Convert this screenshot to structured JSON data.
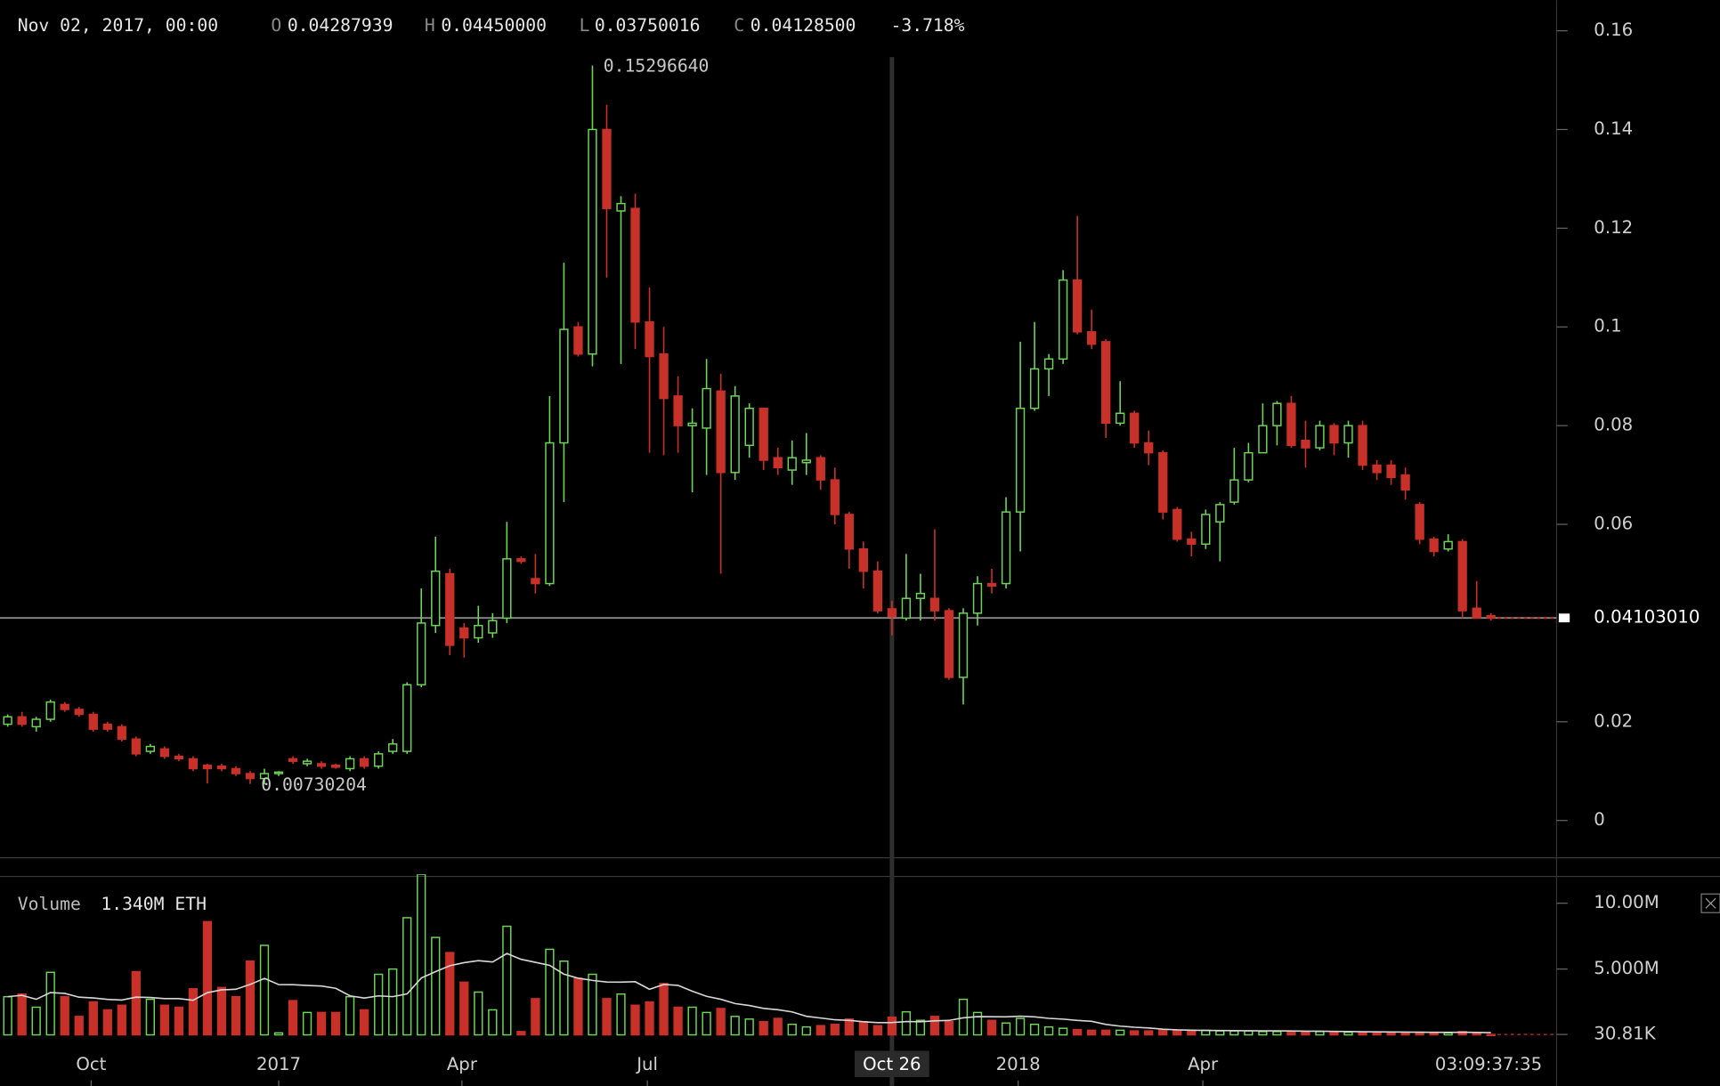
{
  "chart_data": [
    {
      "type": "candlestick",
      "header": {
        "date": "Nov 02, 2017, 00:00",
        "open_label": "O",
        "open": "0.04287939",
        "high_label": "H",
        "high": "0.04450000",
        "low_label": "L",
        "low": "0.03750016",
        "close_label": "C",
        "close": "0.04128500",
        "change": "-3.718%"
      },
      "open": [
        0.0195,
        0.021,
        0.019,
        0.0205,
        0.0235,
        0.0225,
        0.0215,
        0.0195,
        0.019,
        0.0165,
        0.014,
        0.0145,
        0.013,
        0.0125,
        0.0112,
        0.011,
        0.0105,
        0.0095,
        0.0085,
        0.0095,
        0.0125,
        0.0115,
        0.0115,
        0.0112,
        0.0105,
        0.0125,
        0.011,
        0.014,
        0.014,
        0.0275,
        0.0395,
        0.05,
        0.039,
        0.037,
        0.038,
        0.041,
        0.053,
        0.049,
        0.048,
        0.0765,
        0.1,
        0.0945,
        0.14,
        0.1235,
        0.124,
        0.101,
        0.0945,
        0.086,
        0.08,
        0.0795,
        0.087,
        0.0705,
        0.076,
        0.0835,
        0.0735,
        0.071,
        0.0725,
        0.0735,
        0.069,
        0.062,
        0.055,
        0.0505,
        0.04287939,
        0.041,
        0.045,
        0.045,
        0.0425,
        0.029,
        0.042,
        0.048,
        0.048,
        0.0625,
        0.0835,
        0.0915,
        0.0935,
        0.1095,
        0.099,
        0.097,
        0.0805,
        0.0825,
        0.0765,
        0.0745,
        0.063,
        0.057,
        0.056,
        0.0605,
        0.0645,
        0.069,
        0.0745,
        0.08,
        0.0845,
        0.077,
        0.0755,
        0.08,
        0.0765,
        0.08,
        0.072,
        0.072,
        0.07,
        0.064,
        0.057,
        0.055,
        0.0565,
        0.043,
        0.0415
      ],
      "high": [
        0.0215,
        0.022,
        0.021,
        0.0245,
        0.024,
        0.023,
        0.022,
        0.02,
        0.0195,
        0.017,
        0.0155,
        0.015,
        0.0135,
        0.013,
        0.0115,
        0.0115,
        0.011,
        0.01,
        0.0105,
        0.01,
        0.013,
        0.0125,
        0.012,
        0.0115,
        0.013,
        0.013,
        0.014,
        0.0165,
        0.028,
        0.047,
        0.0575,
        0.051,
        0.04,
        0.0435,
        0.042,
        0.0605,
        0.0535,
        0.054,
        0.086,
        0.113,
        0.101,
        0.1529664,
        0.145,
        0.1265,
        0.127,
        0.108,
        0.1,
        0.09,
        0.0835,
        0.0935,
        0.0905,
        0.088,
        0.0845,
        0.0835,
        0.0755,
        0.077,
        0.0785,
        0.074,
        0.0715,
        0.0625,
        0.0565,
        0.0525,
        0.0445,
        0.054,
        0.05,
        0.059,
        0.043,
        0.043,
        0.0495,
        0.051,
        0.0655,
        0.097,
        0.101,
        0.0945,
        0.1115,
        0.1225,
        0.1035,
        0.0975,
        0.089,
        0.083,
        0.079,
        0.075,
        0.0635,
        0.0585,
        0.063,
        0.0645,
        0.0755,
        0.0765,
        0.0845,
        0.085,
        0.086,
        0.081,
        0.081,
        0.0805,
        0.081,
        0.081,
        0.073,
        0.073,
        0.0715,
        0.0645,
        0.0575,
        0.058,
        0.057,
        0.0485,
        0.042
      ],
      "low": [
        0.019,
        0.019,
        0.018,
        0.02,
        0.022,
        0.021,
        0.018,
        0.018,
        0.016,
        0.013,
        0.0135,
        0.0125,
        0.012,
        0.01,
        0.0075,
        0.01,
        0.009,
        0.0074,
        0.00730204,
        0.009,
        0.0115,
        0.011,
        0.0105,
        0.0105,
        0.01,
        0.0105,
        0.0105,
        0.0135,
        0.0135,
        0.027,
        0.038,
        0.0335,
        0.033,
        0.036,
        0.037,
        0.04,
        0.052,
        0.046,
        0.0475,
        0.0645,
        0.094,
        0.092,
        0.11,
        0.0925,
        0.0955,
        0.0745,
        0.074,
        0.0745,
        0.0665,
        0.07,
        0.05,
        0.069,
        0.0735,
        0.071,
        0.07,
        0.068,
        0.07,
        0.067,
        0.06,
        0.051,
        0.047,
        0.042,
        0.03750016,
        0.0405,
        0.0405,
        0.0405,
        0.0285,
        0.0235,
        0.0395,
        0.046,
        0.047,
        0.0545,
        0.083,
        0.086,
        0.0925,
        0.0985,
        0.0955,
        0.0775,
        0.08,
        0.0755,
        0.072,
        0.061,
        0.0565,
        0.0535,
        0.055,
        0.0525,
        0.064,
        0.0685,
        0.0745,
        0.076,
        0.0755,
        0.0715,
        0.075,
        0.074,
        0.0735,
        0.071,
        0.069,
        0.068,
        0.065,
        0.056,
        0.0535,
        0.0545,
        0.041,
        0.041,
        0.0405
      ],
      "close": [
        0.021,
        0.0195,
        0.0205,
        0.024,
        0.0225,
        0.0215,
        0.0185,
        0.0185,
        0.0165,
        0.0135,
        0.015,
        0.013,
        0.0125,
        0.0105,
        0.0105,
        0.0105,
        0.0095,
        0.0085,
        0.0095,
        0.0098,
        0.012,
        0.012,
        0.011,
        0.0108,
        0.0125,
        0.011,
        0.0135,
        0.0155,
        0.0275,
        0.04,
        0.0505,
        0.0355,
        0.037,
        0.0395,
        0.0405,
        0.053,
        0.0525,
        0.048,
        0.0765,
        0.0995,
        0.0945,
        0.14,
        0.124,
        0.125,
        0.101,
        0.094,
        0.0855,
        0.08,
        0.0805,
        0.0875,
        0.0705,
        0.086,
        0.0835,
        0.073,
        0.0715,
        0.0735,
        0.073,
        0.069,
        0.062,
        0.055,
        0.0505,
        0.0425,
        0.041285,
        0.045,
        0.046,
        0.0425,
        0.029,
        0.042,
        0.048,
        0.0475,
        0.0625,
        0.0835,
        0.0915,
        0.0935,
        0.1095,
        0.099,
        0.0965,
        0.0805,
        0.0825,
        0.0765,
        0.0745,
        0.0625,
        0.057,
        0.056,
        0.062,
        0.064,
        0.069,
        0.0745,
        0.08,
        0.0845,
        0.076,
        0.0755,
        0.08,
        0.0765,
        0.08,
        0.072,
        0.0705,
        0.0695,
        0.067,
        0.057,
        0.0545,
        0.0565,
        0.0425,
        0.041,
        0.0410301
      ],
      "up_color": "#6fd35a",
      "down_color": "#c8312a",
      "xlim": [
        -0.54,
        108.6
      ],
      "xticks": [
        {
          "value": 5.85,
          "label": "Oct"
        },
        {
          "value": 19,
          "label": "2017"
        },
        {
          "value": 31.85,
          "label": "Apr"
        },
        {
          "value": 44.85,
          "label": "Jul"
        },
        {
          "value": 70.85,
          "label": "2018"
        },
        {
          "value": 83.8,
          "label": "Apr"
        }
      ],
      "crosshair": {
        "value": 62,
        "label": "Oct 26"
      },
      "ylim": [
        -0.00756,
        0.16622
      ],
      "yticks": [
        0,
        0.02,
        0.06,
        0.08,
        {
          "value": 0.1,
          "label": "0.1"
        },
        0.12,
        0.14,
        0.16
      ],
      "last_price": {
        "value": 0.0410301,
        "label": "0.04103010"
      },
      "high_label": "0.15296640",
      "low_label": "0.00730204"
    },
    {
      "type": "volume",
      "title": "Volume",
      "current": "1.340M ETH",
      "values": [
        2.9,
        3.1,
        2.1,
        4.75,
        2.9,
        1.4,
        2.5,
        1.9,
        2.25,
        4.8,
        2.7,
        2.25,
        2.1,
        3.5,
        8.6,
        3.6,
        2.9,
        5.6,
        6.8,
        0.15,
        2.6,
        1.7,
        1.7,
        1.7,
        2.9,
        1.9,
        4.6,
        5.0,
        8.9,
        12.2,
        7.4,
        6.25,
        4.0,
        3.25,
        1.9,
        8.25,
        0.25,
        2.75,
        6.5,
        5.6,
        4.3,
        4.6,
        2.75,
        3.1,
        2.25,
        2.5,
        3.9,
        2.1,
        2.1,
        1.7,
        2.0,
        1.4,
        1.2,
        1.0,
        1.25,
        0.8,
        0.6,
        0.7,
        0.8,
        1.2,
        1.0,
        0.7,
        1.34,
        1.75,
        1.1,
        1.4,
        1.0,
        2.7,
        1.7,
        1.1,
        0.9,
        1.25,
        0.8,
        0.6,
        0.5,
        0.4,
        0.35,
        0.35,
        0.35,
        0.3,
        0.3,
        0.35,
        0.3,
        0.3,
        0.35,
        0.3,
        0.3,
        0.3,
        0.25,
        0.25,
        0.25,
        0.2,
        0.25,
        0.2,
        0.2,
        0.2,
        0.18,
        0.18,
        0.2,
        0.2,
        0.18,
        0.15,
        0.25,
        0.15,
        0.03081
      ],
      "ylim": [
        -0.13,
        12.12
      ],
      "yticks": [
        {
          "value": 10,
          "label": "10.00M"
        },
        {
          "value": 5,
          "label": "5.000M"
        },
        {
          "value": 0.03081,
          "label": "30.81K"
        }
      ]
    }
  ],
  "countdown": "03:09:37:35"
}
